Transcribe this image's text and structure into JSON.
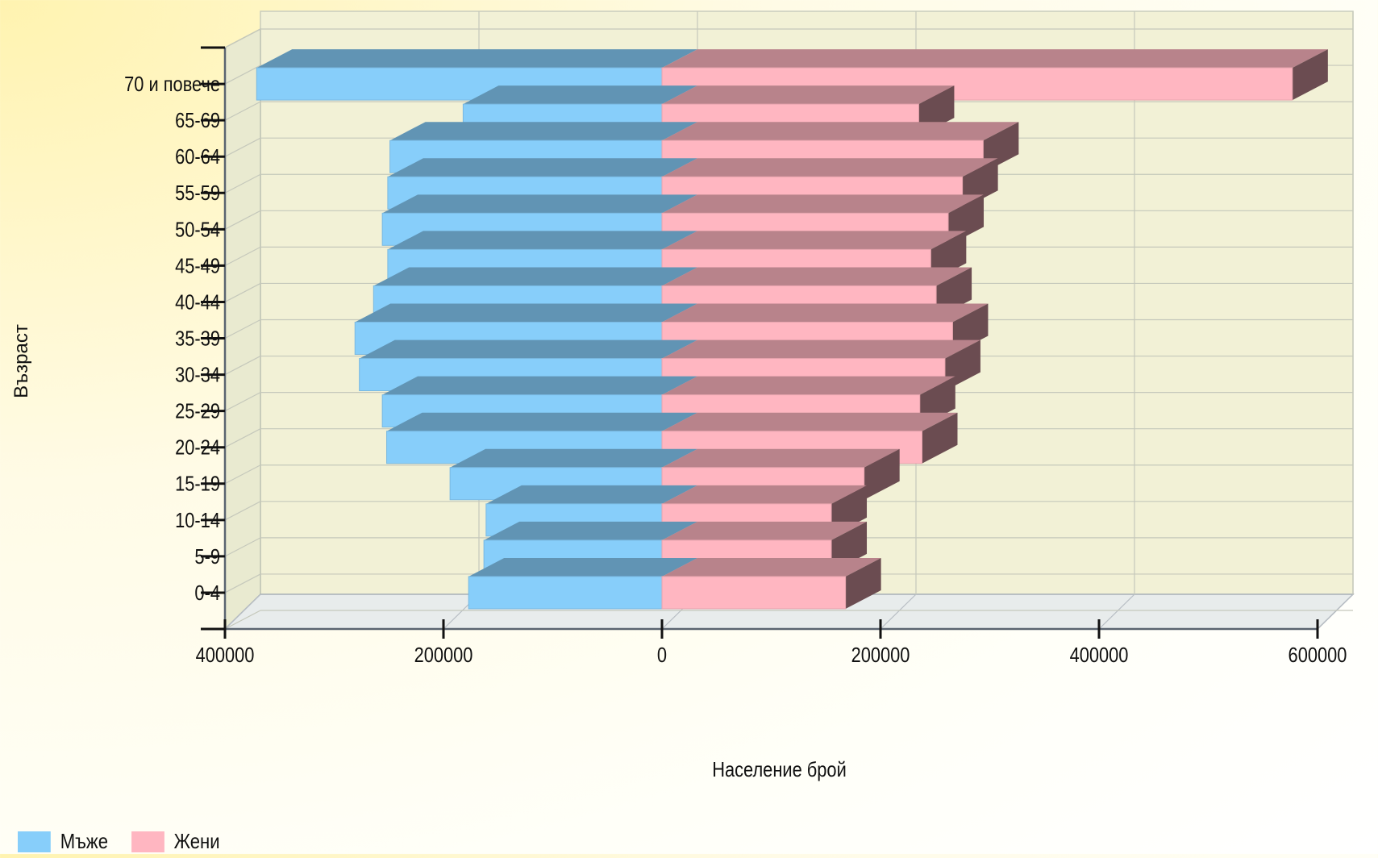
{
  "chart_data": {
    "type": "bar",
    "orientation": "horizontal",
    "style": "population-pyramid-3d",
    "xlabel": "Население брой",
    "ylabel": "Възраст",
    "categories": [
      "0-4",
      "5-9",
      "10-14",
      "15-19",
      "20-24",
      "25-29",
      "30-34",
      "35-39",
      "40-44",
      "45-49",
      "50-54",
      "55-59",
      "60-64",
      "65-69",
      "70 и повече"
    ],
    "series": [
      {
        "name": "Мъже",
        "color": "#87CEFA",
        "values": [
          177000,
          163000,
          161000,
          194000,
          252000,
          256000,
          277000,
          281000,
          264000,
          251000,
          256000,
          251000,
          249000,
          182000,
          371000
        ]
      },
      {
        "name": "Жени",
        "color": "#FFB6C1",
        "values": [
          168000,
          155000,
          155000,
          185000,
          238000,
          236000,
          259000,
          266000,
          251000,
          246000,
          262000,
          275000,
          294000,
          235000,
          577000
        ]
      }
    ],
    "xlim": [
      -400000,
      600000
    ],
    "x_ticks": [
      -400000,
      -200000,
      0,
      200000,
      400000,
      600000
    ],
    "x_tick_labels": [
      "400000",
      "200000",
      "0",
      "200000",
      "400000",
      "600000"
    ],
    "grid": true,
    "legend_position": "bottom-left"
  }
}
